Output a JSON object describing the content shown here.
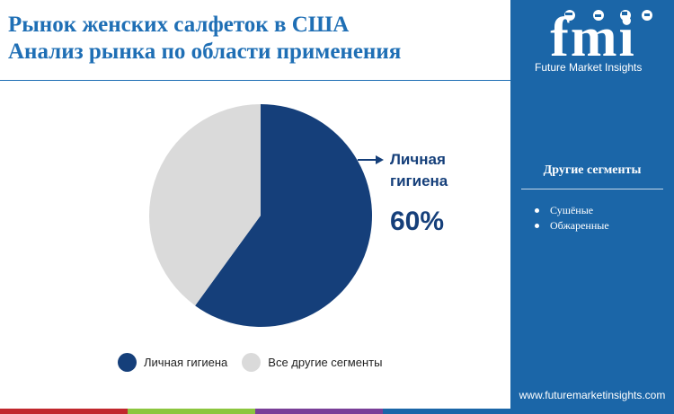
{
  "header": {
    "title_line1": "Рынок женских салфеток в США",
    "title_line2": "Анализ рынка по области применения"
  },
  "brand": {
    "logo_text": "fmi",
    "caption": "Future Market Insights",
    "url": "www.futuremarketinsights.com",
    "sidebar_color": "#1b66a8"
  },
  "other_segments": {
    "heading": "Другие сегменты",
    "items": [
      "Сушёные",
      "Обжаренные"
    ]
  },
  "callout": {
    "label": "Личная гигиена",
    "value_text": "60%"
  },
  "chart_data": {
    "type": "pie",
    "categories": [
      "Личная гигиена",
      "Все другие сегменты"
    ],
    "values": [
      60,
      40
    ],
    "colors": [
      "#153f7a",
      "#dadada"
    ],
    "start": "12 o'clock",
    "direction": "clockwise",
    "legend_position": "bottom"
  },
  "decor": {
    "bottom_bar_colors": [
      "#c1272d",
      "#8cc63f",
      "#7a3f98",
      "#1b66a8"
    ]
  }
}
